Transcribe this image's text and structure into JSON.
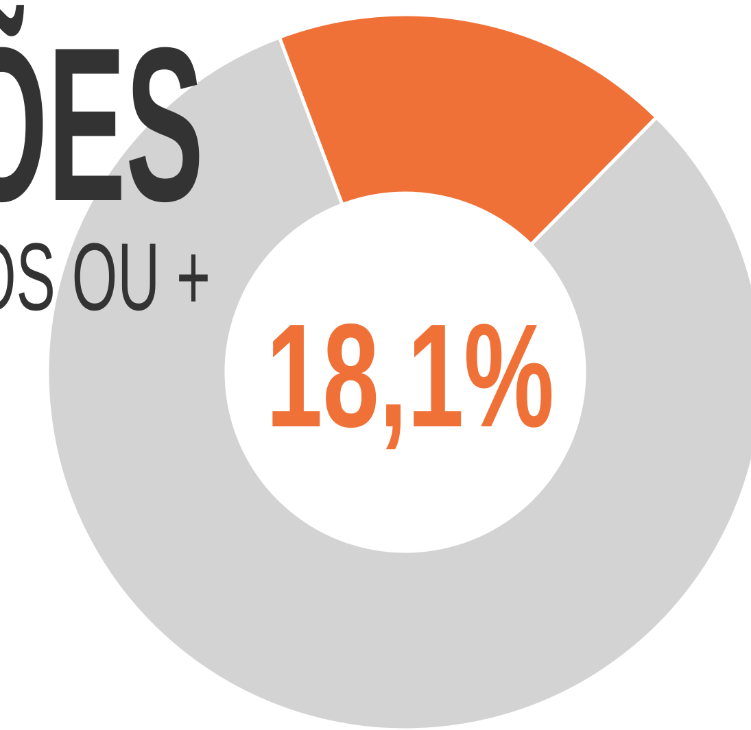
{
  "chart_data": {
    "type": "donut",
    "title": "ÕES",
    "subtitle": "OS OU +",
    "values": [
      18.1,
      81.9
    ],
    "value_labels": [
      "18,1%",
      null
    ],
    "colors": [
      "#f07137",
      "#d3d3d3"
    ],
    "title_color": "#333333"
  }
}
